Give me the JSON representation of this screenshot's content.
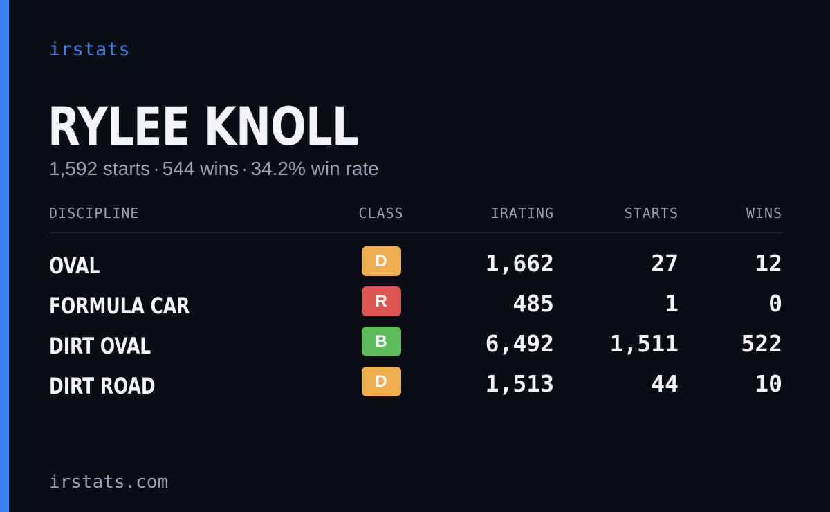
{
  "brand": "irstats",
  "driver": {
    "name": "RYLEE KNOLL"
  },
  "summary": {
    "starts": "1,592 starts",
    "wins": "544 wins",
    "win_rate": "34.2% win rate",
    "separator": "·"
  },
  "table": {
    "headers": {
      "discipline": "DISCIPLINE",
      "class": "CLASS",
      "irating": "IRATING",
      "starts": "STARTS",
      "wins": "WINS"
    },
    "rows": [
      {
        "discipline": "OVAL",
        "class": "D",
        "class_color": "#efad4f",
        "irating": "1,662",
        "starts": "27",
        "wins": "12"
      },
      {
        "discipline": "FORMULA CAR",
        "class": "R",
        "class_color": "#dc5550",
        "irating": "485",
        "starts": "1",
        "wins": "0"
      },
      {
        "discipline": "DIRT OVAL",
        "class": "B",
        "class_color": "#5bbe5b",
        "irating": "6,492",
        "starts": "1,511",
        "wins": "522"
      },
      {
        "discipline": "DIRT ROAD",
        "class": "D",
        "class_color": "#efad4f",
        "irating": "1,513",
        "starts": "44",
        "wins": "10"
      }
    ]
  },
  "footer": {
    "site": "irstats.com"
  },
  "colors": {
    "accent": "#3b82f6",
    "background": "#0a0d14",
    "muted_text": "#97a1b2"
  }
}
